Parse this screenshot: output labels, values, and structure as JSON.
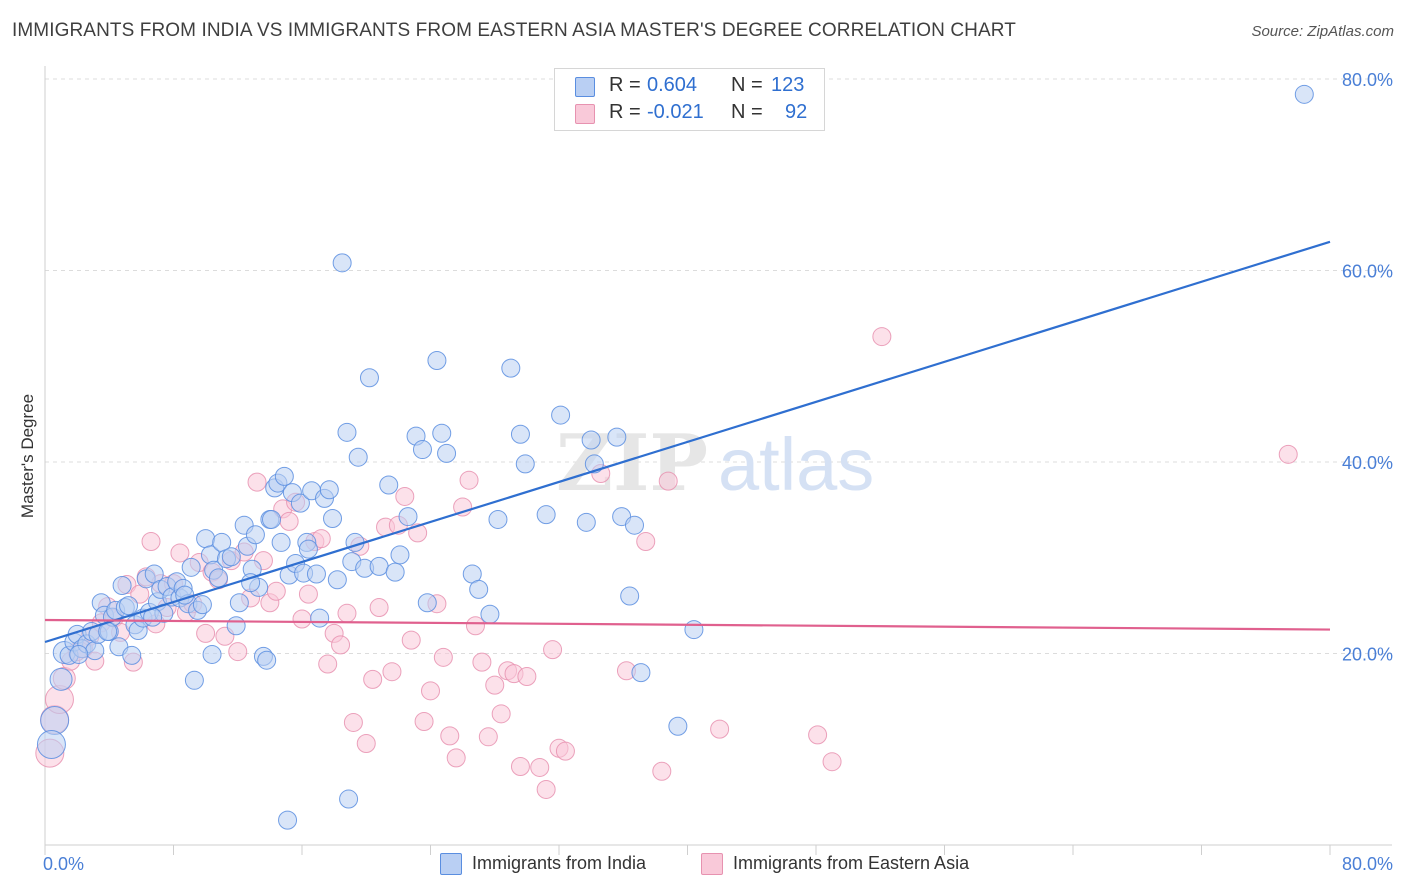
{
  "title": "IMMIGRANTS FROM INDIA VS IMMIGRANTS FROM EASTERN ASIA MASTER'S DEGREE CORRELATION CHART",
  "source": "Source: ZipAtlas.com",
  "watermark": {
    "zip": "ZIP",
    "atlas": "atlas"
  },
  "legend": {
    "r_label": "R =",
    "n_label": "N =",
    "rows": [
      {
        "r": "0.604",
        "n": "123",
        "color": "#5a8ee0"
      },
      {
        "r": "-0.021",
        "n": "92",
        "color": "#e792b0"
      }
    ]
  },
  "colors": {
    "blue_fill": "#b9cff3",
    "blue_stroke": "#5a8ee0",
    "blue_line": "#2f6fd0",
    "pink_fill": "#f9c9d9",
    "pink_stroke": "#e792b0",
    "pink_line": "#e0608e",
    "tick_label": "#4a7fd6"
  },
  "chart_data": {
    "type": "scatter",
    "title": "IMMIGRANTS FROM INDIA VS IMMIGRANTS FROM EASTERN ASIA MASTER'S DEGREE CORRELATION CHART",
    "xlabel": "",
    "ylabel": "Master's Degree",
    "xlim": [
      0,
      80
    ],
    "ylim": [
      0,
      80
    ],
    "x_tick_labels": [
      "0.0%",
      "80.0%"
    ],
    "y_tick_labels": [
      "20.0%",
      "40.0%",
      "60.0%",
      "80.0%"
    ],
    "y_ticks": [
      20,
      40,
      60,
      80
    ],
    "grid": "horizontal dashed",
    "legend_position": "top-center",
    "series": [
      {
        "name": "Immigrants from India",
        "color": "#5a8ee0",
        "trend": {
          "x": [
            0,
            80
          ],
          "y": [
            21.2,
            63.0
          ]
        },
        "points": [
          [
            1,
            17.3
          ],
          [
            1.2,
            20.1
          ],
          [
            1.5,
            19.8
          ],
          [
            1.8,
            21.2
          ],
          [
            2,
            22
          ],
          [
            2.3,
            20.5
          ],
          [
            2.6,
            21
          ],
          [
            2.9,
            22.3
          ],
          [
            3.1,
            20.3
          ],
          [
            3.3,
            22
          ],
          [
            3.5,
            25.3
          ],
          [
            3.7,
            24
          ],
          [
            4,
            22.3
          ],
          [
            4.2,
            23.8
          ],
          [
            4.4,
            24.5
          ],
          [
            4.6,
            20.7
          ],
          [
            4.8,
            27.1
          ],
          [
            5,
            24.8
          ],
          [
            5.2,
            25
          ],
          [
            5.4,
            19.8
          ],
          [
            5.6,
            23
          ],
          [
            5.8,
            22.4
          ],
          [
            6.1,
            23.7
          ],
          [
            6.3,
            27.8
          ],
          [
            6.5,
            24.3
          ],
          [
            6.8,
            28.3
          ],
          [
            7,
            25.4
          ],
          [
            7.2,
            26.7
          ],
          [
            7.4,
            24.2
          ],
          [
            7.6,
            27
          ],
          [
            7.9,
            25.9
          ],
          [
            8.2,
            27.5
          ],
          [
            8.4,
            25.8
          ],
          [
            8.6,
            26.8
          ],
          [
            8.9,
            25.2
          ],
          [
            9.1,
            29
          ],
          [
            9.3,
            17.2
          ],
          [
            9.5,
            24.5
          ],
          [
            9.8,
            25.1
          ],
          [
            10,
            32
          ],
          [
            10.3,
            30.3
          ],
          [
            10.5,
            28.7
          ],
          [
            10.8,
            27.9
          ],
          [
            11,
            31.6
          ],
          [
            11.3,
            29.9
          ],
          [
            11.6,
            30.1
          ],
          [
            11.9,
            22.9
          ],
          [
            12.1,
            25.3
          ],
          [
            12.4,
            33.4
          ],
          [
            12.6,
            31.2
          ],
          [
            12.9,
            28.8
          ],
          [
            13.1,
            32.4
          ],
          [
            13.3,
            26.9
          ],
          [
            13.6,
            19.7
          ],
          [
            13.8,
            19.3
          ],
          [
            14,
            34
          ],
          [
            14.3,
            37.3
          ],
          [
            14.5,
            37.8
          ],
          [
            14.7,
            31.6
          ],
          [
            14.9,
            38.5
          ],
          [
            15.2,
            28.2
          ],
          [
            15.4,
            36.8
          ],
          [
            15.6,
            29.4
          ],
          [
            15.9,
            35.7
          ],
          [
            16.1,
            28.4
          ],
          [
            16.3,
            31.6
          ],
          [
            16.6,
            37
          ],
          [
            16.9,
            28.3
          ],
          [
            17.1,
            23.7
          ],
          [
            17.4,
            36.2
          ],
          [
            17.7,
            37.1
          ],
          [
            17.9,
            34.1
          ],
          [
            18.2,
            27.7
          ],
          [
            18.5,
            60.8
          ],
          [
            18.8,
            43.1
          ],
          [
            19.1,
            29.6
          ],
          [
            19.5,
            40.5
          ],
          [
            19.9,
            28.9
          ],
          [
            20.2,
            48.8
          ],
          [
            20.8,
            29.1
          ],
          [
            21.4,
            37.6
          ],
          [
            21.8,
            28.5
          ],
          [
            22.1,
            30.3
          ],
          [
            22.6,
            34.3
          ],
          [
            23.1,
            42.7
          ],
          [
            23.5,
            41.3
          ],
          [
            23.8,
            25.3
          ],
          [
            24.4,
            50.6
          ],
          [
            24.7,
            43
          ],
          [
            25,
            40.9
          ],
          [
            26.6,
            28.3
          ],
          [
            27,
            26.7
          ],
          [
            27.7,
            24.1
          ],
          [
            28.2,
            34
          ],
          [
            29,
            49.8
          ],
          [
            29.6,
            42.9
          ],
          [
            29.9,
            39.8
          ],
          [
            31.2,
            34.5
          ],
          [
            32.1,
            44.9
          ],
          [
            33.7,
            33.7
          ],
          [
            34,
            42.3
          ],
          [
            34.2,
            39.8
          ],
          [
            35.6,
            42.6
          ],
          [
            35.9,
            34.3
          ],
          [
            36.4,
            26
          ],
          [
            36.7,
            33.4
          ],
          [
            37.1,
            18
          ],
          [
            39.4,
            12.4
          ],
          [
            40.4,
            22.5
          ],
          [
            15.1,
            2.6
          ],
          [
            18.9,
            4.8
          ],
          [
            78.4,
            78.4
          ],
          [
            0.6,
            13
          ],
          [
            0.4,
            10.5
          ],
          [
            2.1,
            19.9
          ],
          [
            3.9,
            22.3
          ],
          [
            6.7,
            23.8
          ],
          [
            8.7,
            26.1
          ],
          [
            10.4,
            19.9
          ],
          [
            12.8,
            27.4
          ],
          [
            14.1,
            34
          ],
          [
            16.4,
            30.9
          ],
          [
            19.3,
            31.6
          ]
        ]
      },
      {
        "name": "Immigrants from Eastern Asia",
        "color": "#e792b0",
        "trend": {
          "x": [
            0,
            80
          ],
          "y": [
            23.5,
            22.5
          ]
        },
        "points": [
          [
            0.3,
            9.6
          ],
          [
            0.6,
            13.1
          ],
          [
            0.9,
            15.2
          ],
          [
            1.2,
            17.4
          ],
          [
            1.6,
            19.2
          ],
          [
            2,
            20.2
          ],
          [
            2.4,
            20.5
          ],
          [
            2.8,
            21.8
          ],
          [
            3.1,
            19.2
          ],
          [
            3.5,
            23.2
          ],
          [
            3.9,
            24.9
          ],
          [
            4.3,
            23.7
          ],
          [
            4.7,
            22.2
          ],
          [
            5.1,
            27.2
          ],
          [
            5.5,
            19.1
          ],
          [
            5.9,
            26.2
          ],
          [
            6.3,
            28
          ],
          [
            6.6,
            31.7
          ],
          [
            6.9,
            23.1
          ],
          [
            7.2,
            27.3
          ],
          [
            7.6,
            24.8
          ],
          [
            8,
            27.3
          ],
          [
            8.4,
            30.5
          ],
          [
            8.8,
            24.3
          ],
          [
            9.2,
            25.2
          ],
          [
            9.6,
            29.5
          ],
          [
            10,
            22.1
          ],
          [
            10.4,
            28.5
          ],
          [
            10.8,
            27.7
          ],
          [
            11.2,
            21.8
          ],
          [
            11.6,
            29.7
          ],
          [
            12,
            20.2
          ],
          [
            12.4,
            30.6
          ],
          [
            12.8,
            25.8
          ],
          [
            13.2,
            37.9
          ],
          [
            13.6,
            29.7
          ],
          [
            14,
            25.3
          ],
          [
            14.4,
            26.5
          ],
          [
            14.8,
            35.1
          ],
          [
            15.2,
            33.8
          ],
          [
            15.6,
            35.8
          ],
          [
            16,
            23.6
          ],
          [
            16.4,
            26.2
          ],
          [
            16.8,
            31.7
          ],
          [
            17.2,
            32
          ],
          [
            17.6,
            18.9
          ],
          [
            18,
            22.1
          ],
          [
            18.4,
            20.9
          ],
          [
            18.8,
            24.2
          ],
          [
            19.2,
            12.8
          ],
          [
            19.6,
            31.2
          ],
          [
            20,
            10.6
          ],
          [
            20.4,
            17.3
          ],
          [
            20.8,
            24.8
          ],
          [
            21.2,
            33.2
          ],
          [
            21.6,
            18.1
          ],
          [
            22,
            33.4
          ],
          [
            22.4,
            36.4
          ],
          [
            22.8,
            21.4
          ],
          [
            23.2,
            32.6
          ],
          [
            23.6,
            12.9
          ],
          [
            24,
            16.1
          ],
          [
            24.4,
            25.2
          ],
          [
            24.8,
            19.6
          ],
          [
            25.2,
            11.4
          ],
          [
            25.6,
            9.1
          ],
          [
            26,
            35.3
          ],
          [
            26.4,
            38.1
          ],
          [
            26.8,
            22.9
          ],
          [
            27.2,
            19.1
          ],
          [
            27.6,
            11.3
          ],
          [
            28,
            16.7
          ],
          [
            28.4,
            13.7
          ],
          [
            28.8,
            18.2
          ],
          [
            29.2,
            17.9
          ],
          [
            29.6,
            8.2
          ],
          [
            30,
            17.6
          ],
          [
            30.8,
            8.1
          ],
          [
            31.2,
            5.8
          ],
          [
            31.6,
            20.4
          ],
          [
            32,
            10.1
          ],
          [
            32.4,
            9.8
          ],
          [
            34.6,
            38.8
          ],
          [
            36.2,
            18.2
          ],
          [
            37.4,
            31.7
          ],
          [
            38.4,
            7.7
          ],
          [
            38.8,
            38
          ],
          [
            42,
            12.1
          ],
          [
            48.1,
            11.5
          ],
          [
            49,
            8.7
          ],
          [
            52.1,
            53.1
          ],
          [
            77.4,
            40.8
          ]
        ]
      }
    ]
  }
}
